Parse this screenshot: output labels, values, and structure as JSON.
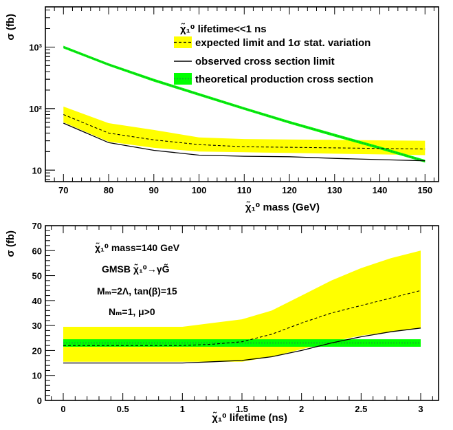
{
  "colors": {
    "band_expected": "#ffff00",
    "band_theory": "#00ff00",
    "line_theory": "#1f9a3a",
    "line_observed": "#000000",
    "line_expected": "#000000"
  },
  "chart_data": [
    {
      "type": "line",
      "panel": "top",
      "xlabel": "χ̃₁⁰ mass (GeV)",
      "ylabel": "σ (fb)",
      "xlim": [
        66,
        153
      ],
      "ylim": [
        6.5,
        4500
      ],
      "yscale": "log",
      "grid": false,
      "legend_placement": "top-right",
      "x_ticks": [
        70,
        80,
        90,
        100,
        110,
        120,
        130,
        140,
        150
      ],
      "x_tick_labels": [
        "70",
        "80",
        "90",
        "100",
        "110",
        "120",
        "130",
        "140",
        "150"
      ],
      "y_ticks": [
        10,
        100,
        1000
      ],
      "y_tick_labels": [
        "10",
        "10²",
        "10³"
      ],
      "legend_title": "χ̃₁⁰ lifetime<<1 ns",
      "legend_entries": [
        "expected limit and  1σ stat. variation",
        "observed cross section limit",
        "theoretical production cross section"
      ],
      "x": [
        70,
        80,
        90,
        100,
        110,
        120,
        130,
        140,
        150
      ],
      "series": [
        {
          "name": "observed cross section limit",
          "values": [
            58,
            28,
            21,
            17.5,
            16.8,
            16.5,
            15.5,
            14.8,
            14.2
          ]
        },
        {
          "name": "expected limit and  1σ stat. variation",
          "values": [
            80,
            40,
            31,
            26,
            24,
            23.5,
            23,
            22.5,
            22
          ],
          "band_low": [
            60,
            29,
            23,
            20,
            19.5,
            19,
            18.5,
            18,
            17.5
          ],
          "band_high": [
            108,
            58,
            45,
            34,
            32,
            31.5,
            31,
            30.5,
            30
          ]
        },
        {
          "name": "theoretical production cross section",
          "values": [
            1000,
            520,
            290,
            170,
            100,
            60,
            37,
            23,
            14
          ],
          "band_low": [
            950,
            495,
            275,
            161,
            95,
            57,
            35,
            21.8,
            13.3
          ],
          "band_high": [
            1050,
            545,
            305,
            179,
            105,
            63,
            39,
            24.2,
            14.7
          ]
        }
      ]
    },
    {
      "type": "line",
      "panel": "bottom",
      "xlabel": "χ̃₁⁰ lifetime (ns)",
      "ylabel": "σ (fb)",
      "xlim": [
        -0.15,
        3.15
      ],
      "ylim": [
        0,
        70
      ],
      "yscale": "linear",
      "grid": false,
      "x_ticks": [
        0,
        0.5,
        1,
        1.5,
        2,
        2.5,
        3
      ],
      "x_tick_labels": [
        "0",
        "0.5",
        "1",
        "1.5",
        "2",
        "2.5",
        "3"
      ],
      "y_ticks": [
        0,
        10,
        20,
        30,
        40,
        50,
        60,
        70
      ],
      "y_tick_labels": [
        "0",
        "10",
        "20",
        "30",
        "40",
        "50",
        "60",
        "70"
      ],
      "annotations": [
        "χ̃₁⁰ mass=140 GeV",
        "GMSB χ̃₁⁰→γG̃",
        "Mₘ=2Λ, tan(β)=15",
        "Nₘ=1, μ>0"
      ],
      "x": [
        0,
        0.25,
        0.5,
        0.75,
        1,
        1.25,
        1.5,
        1.75,
        2,
        2.25,
        2.5,
        2.75,
        3
      ],
      "series": [
        {
          "name": "observed cross section limit",
          "values": [
            15,
            15,
            15,
            15,
            15,
            15.5,
            16,
            17.5,
            20,
            23,
            25.5,
            27.5,
            29
          ]
        },
        {
          "name": "expected limit and  1σ stat. variation",
          "values": [
            22,
            22,
            22,
            22,
            22,
            22.5,
            23.5,
            26.5,
            31,
            35,
            38,
            41,
            44
          ],
          "band_low": [
            15.5,
            15.5,
            15.5,
            15.5,
            15.5,
            15.5,
            15.5,
            17.5,
            20.5,
            23.5,
            26,
            27.5,
            29
          ],
          "band_high": [
            29.5,
            29.5,
            29.5,
            29.5,
            29.5,
            31,
            32.5,
            36,
            42,
            48,
            53,
            57,
            60
          ]
        },
        {
          "name": "theoretical production cross section",
          "values": [
            23,
            23,
            23,
            23,
            23,
            23,
            23,
            23,
            23,
            23,
            23,
            23,
            23
          ],
          "band_low": [
            21.5,
            21.5,
            21.5,
            21.5,
            21.5,
            21.5,
            21.5,
            21.5,
            21.5,
            21.5,
            21.5,
            21.5,
            21.5
          ],
          "band_high": [
            24.5,
            24.5,
            24.5,
            24.5,
            24.5,
            24.5,
            24.5,
            24.5,
            24.5,
            24.5,
            24.5,
            24.5,
            24.5
          ]
        }
      ]
    }
  ]
}
